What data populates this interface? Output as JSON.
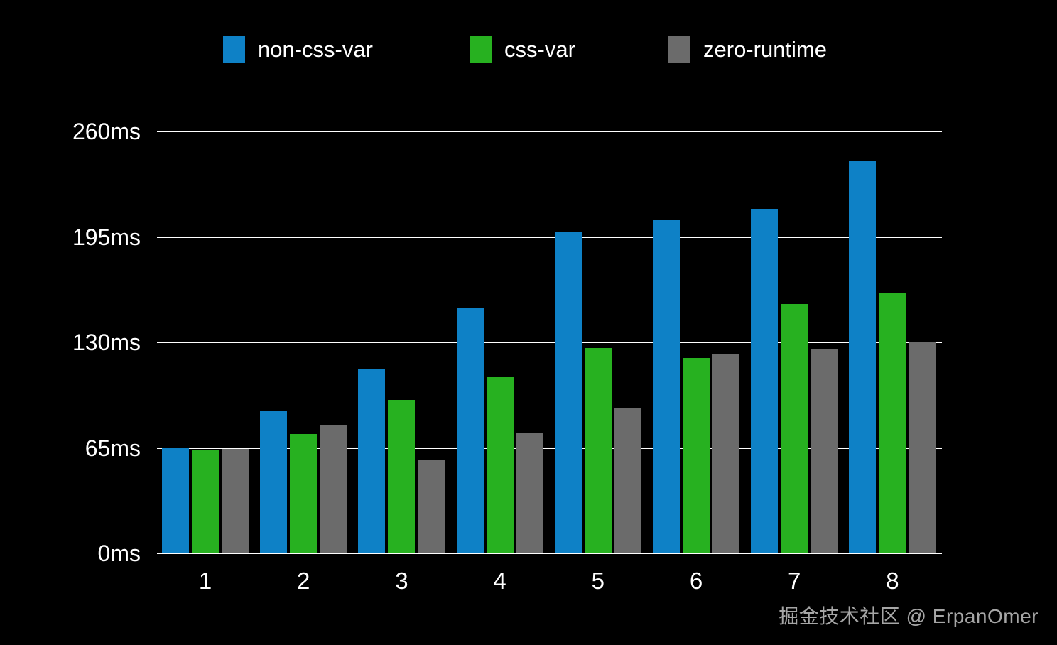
{
  "chart_data": {
    "type": "bar",
    "title": "",
    "categories": [
      "1",
      "2",
      "3",
      "4",
      "5",
      "6",
      "7",
      "8"
    ],
    "series": [
      {
        "name": "non-css-var",
        "color": "#0e81c6",
        "values": [
          65,
          87,
          113,
          151,
          198,
          205,
          212,
          241
        ]
      },
      {
        "name": "css-var",
        "color": "#27b120",
        "values": [
          63,
          73,
          94,
          108,
          126,
          120,
          153,
          160
        ]
      },
      {
        "name": "zero-runtime",
        "color": "#6b6b6b",
        "values": [
          64,
          79,
          57,
          74,
          89,
          122,
          125,
          130
        ]
      }
    ],
    "xlabel": "",
    "ylabel": "",
    "y_ticks": [
      {
        "value": 0,
        "label": "0ms"
      },
      {
        "value": 65,
        "label": "65ms"
      },
      {
        "value": 130,
        "label": "130ms"
      },
      {
        "value": 195,
        "label": "195ms"
      },
      {
        "value": 260,
        "label": "260ms"
      }
    ],
    "ylim": [
      0,
      260
    ],
    "grid": true,
    "legend_position": "top",
    "background_color": "#000000",
    "gridline_color": "#ffffff",
    "text_color": "#ffffff"
  },
  "watermark": {
    "text": "掘金技术社区 @ ErpanOmer"
  }
}
